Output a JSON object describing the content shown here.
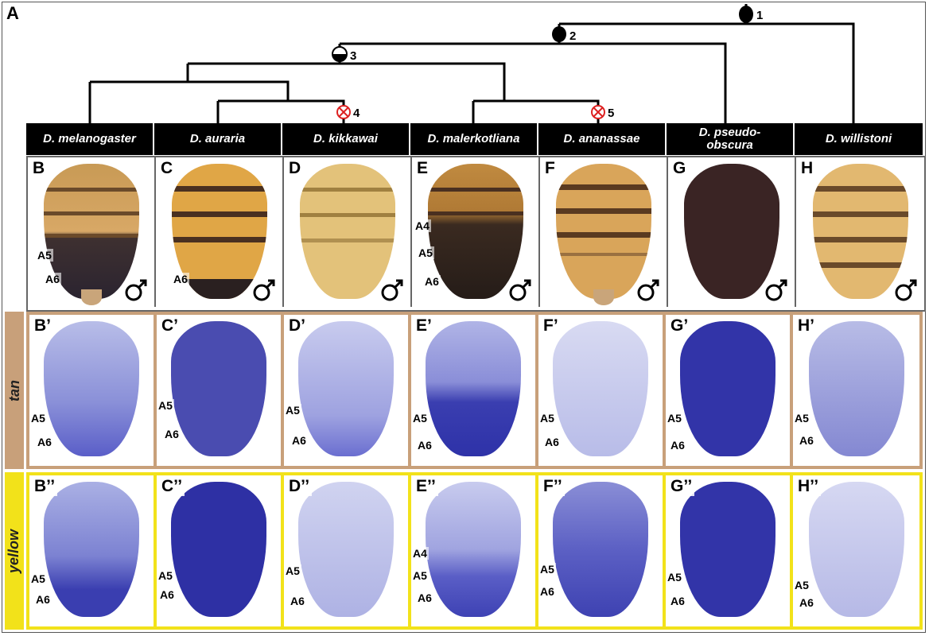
{
  "figure_label": "A",
  "nodes": [
    "1",
    "2",
    "3",
    "4",
    "5"
  ],
  "species": [
    {
      "name": "D. melanogaster",
      "panel": "B",
      "tan_panel": "B’",
      "yellow_panel": "B’’"
    },
    {
      "name": "D. auraria",
      "panel": "C",
      "tan_panel": "C’",
      "yellow_panel": "C’’"
    },
    {
      "name": "D. kikkawai",
      "panel": "D",
      "tan_panel": "D’",
      "yellow_panel": "D’’"
    },
    {
      "name": "D. malerkotliana",
      "panel": "E",
      "tan_panel": "E’",
      "yellow_panel": "E’’"
    },
    {
      "name": "D. ananassae",
      "panel": "F",
      "tan_panel": "F’",
      "yellow_panel": "F’’"
    },
    {
      "name": "D. pseudo-obscura",
      "panel": "G",
      "tan_panel": "G’",
      "yellow_panel": "G’’"
    },
    {
      "name": "D. willistoni",
      "panel": "H",
      "tan_panel": "H’",
      "yellow_panel": "H’’"
    }
  ],
  "row_labels": {
    "tan": "tan",
    "yellow": "yellow"
  },
  "segment_labels": {
    "a4": "A4",
    "a5": "A5",
    "a6": "A6"
  },
  "colors": {
    "tan_border": "#c8a07a",
    "yellow_border": "#f2e21a",
    "stain": "#3a3ab0"
  }
}
